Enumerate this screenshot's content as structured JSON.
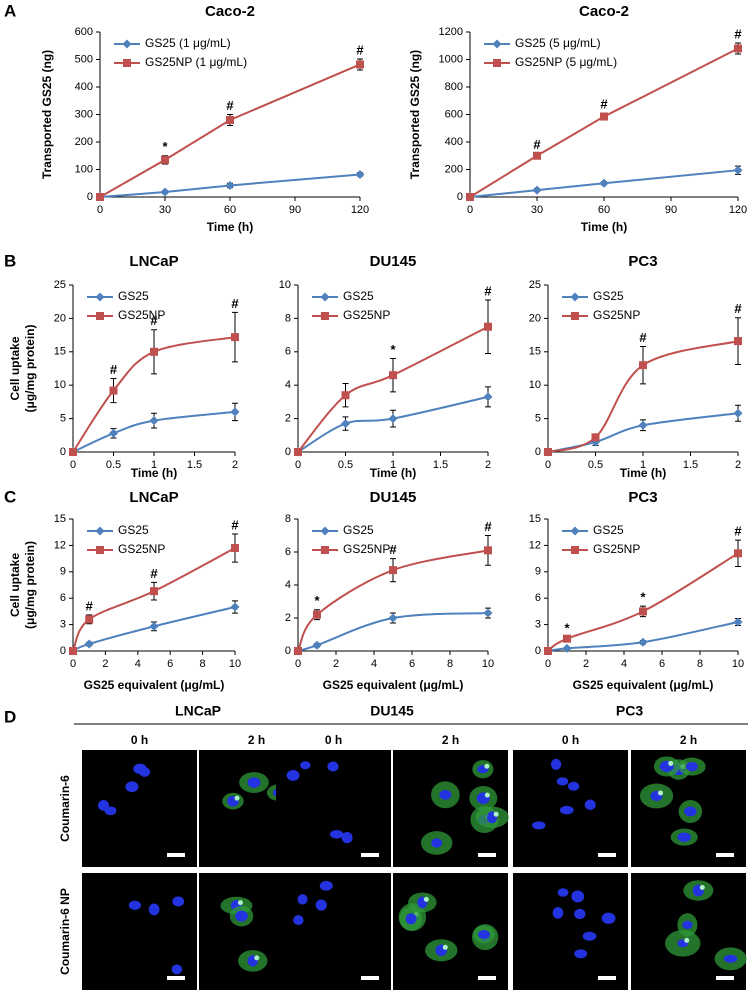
{
  "panel_labels": [
    "A",
    "B",
    "C",
    "D"
  ],
  "micrographs": {
    "cell_lines": [
      "LNCaP",
      "DU145",
      "PC3"
    ],
    "times": [
      "0 h",
      "2 h"
    ],
    "rows": [
      "Coumarin-6",
      "Coumarin-6 NP"
    ]
  },
  "chart_data": [
    {
      "type": "line",
      "title": "Caco-2",
      "xlabel": "Time (h)",
      "ylabel": "Transported GS25 (ng)",
      "smooth": false,
      "grid": false,
      "legend": "top-left",
      "x": [
        0,
        30,
        60,
        120
      ],
      "xlim": [
        0,
        120
      ],
      "xticks": [
        0,
        30,
        60,
        90,
        120
      ],
      "ylim": [
        0,
        600
      ],
      "yticks": [
        0,
        100,
        200,
        300,
        400,
        500,
        600
      ],
      "series": [
        {
          "name": "GS25 (1 μg/mL)",
          "color": "#4f81bd",
          "marker": "diamond",
          "values": [
            0,
            18,
            42,
            82
          ],
          "errors": [
            0,
            5,
            8,
            6
          ],
          "point_labels": [
            null,
            null,
            null,
            null
          ]
        },
        {
          "name": "GS25NP (1 μg/mL)",
          "color": "#c0504d",
          "marker": "square",
          "values": [
            0,
            135,
            280,
            482
          ],
          "errors": [
            0,
            15,
            20,
            20
          ],
          "point_labels": [
            null,
            "*",
            "#",
            "#"
          ]
        }
      ]
    },
    {
      "type": "line",
      "title": "Caco-2",
      "xlabel": "Time (h)",
      "ylabel": "Transported GS25 (ng)",
      "smooth": false,
      "grid": false,
      "legend": "top-left",
      "x": [
        0,
        30,
        60,
        120
      ],
      "xlim": [
        0,
        120
      ],
      "xticks": [
        0,
        30,
        60,
        90,
        120
      ],
      "ylim": [
        0,
        1200
      ],
      "yticks": [
        0,
        200,
        400,
        600,
        800,
        1000,
        1200
      ],
      "series": [
        {
          "name": "GS25 (5 μg/mL)",
          "color": "#4f81bd",
          "marker": "diamond",
          "values": [
            0,
            50,
            100,
            195
          ],
          "errors": [
            0,
            10,
            12,
            30
          ],
          "point_labels": [
            null,
            null,
            null,
            null
          ]
        },
        {
          "name": "GS25NP (5 μg/mL)",
          "color": "#c0504d",
          "marker": "square",
          "values": [
            0,
            300,
            585,
            1080
          ],
          "errors": [
            0,
            15,
            25,
            40
          ],
          "point_labels": [
            null,
            "#",
            "#",
            "#"
          ]
        }
      ]
    },
    {
      "type": "line",
      "title": "LNCaP",
      "xlabel": "Time (h)",
      "ylabel": [
        "Cell uptake",
        "(μg/mg protein)"
      ],
      "smooth": true,
      "grid": false,
      "legend": "top-left",
      "x": [
        0,
        0.5,
        1,
        2
      ],
      "xlim": [
        0,
        2
      ],
      "xticks": [
        0,
        0.5,
        1,
        1.5,
        2
      ],
      "ylim": [
        0,
        25
      ],
      "yticks": [
        0,
        5,
        10,
        15,
        20,
        25
      ],
      "series": [
        {
          "name": "GS25",
          "color": "#4f81bd",
          "marker": "diamond",
          "values": [
            0,
            2.8,
            4.7,
            6
          ],
          "errors": [
            0,
            0.7,
            1.1,
            1.3
          ],
          "point_labels": [
            null,
            null,
            null,
            null
          ]
        },
        {
          "name": "GS25NP",
          "color": "#c0504d",
          "marker": "square",
          "values": [
            0,
            9.2,
            15,
            17.2
          ],
          "errors": [
            0,
            1.8,
            3.3,
            3.7
          ],
          "point_labels": [
            null,
            "#",
            "#",
            "#"
          ]
        }
      ]
    },
    {
      "type": "line",
      "title": "DU145",
      "xlabel": "Time (h)",
      "smooth": true,
      "grid": false,
      "legend": "top-left",
      "x": [
        0,
        0.5,
        1,
        2
      ],
      "xlim": [
        0,
        2
      ],
      "xticks": [
        0,
        0.5,
        1,
        1.5,
        2
      ],
      "ylim": [
        0,
        10
      ],
      "yticks": [
        0,
        2,
        4,
        6,
        8,
        10
      ],
      "series": [
        {
          "name": "GS25",
          "color": "#4f81bd",
          "marker": "diamond",
          "values": [
            0,
            1.7,
            2,
            3.3
          ],
          "errors": [
            0,
            0.4,
            0.5,
            0.6
          ],
          "point_labels": [
            null,
            null,
            null,
            null
          ]
        },
        {
          "name": "GS25NP",
          "color": "#c0504d",
          "marker": "square",
          "values": [
            0,
            3.4,
            4.6,
            7.5
          ],
          "errors": [
            0,
            0.7,
            1,
            1.6
          ],
          "point_labels": [
            null,
            null,
            "*",
            "#"
          ]
        }
      ]
    },
    {
      "type": "line",
      "title": "PC3",
      "xlabel": "Time (h)",
      "smooth": true,
      "grid": false,
      "legend": "top-left",
      "x": [
        0,
        0.5,
        1,
        2
      ],
      "xlim": [
        0,
        2
      ],
      "xticks": [
        0,
        0.5,
        1,
        1.5,
        2
      ],
      "ylim": [
        0,
        25
      ],
      "yticks": [
        0,
        5,
        10,
        15,
        20,
        25
      ],
      "series": [
        {
          "name": "GS25",
          "color": "#4f81bd",
          "marker": "diamond",
          "values": [
            0,
            1.5,
            4,
            5.8
          ],
          "errors": [
            0,
            0.5,
            0.8,
            1.2
          ],
          "point_labels": [
            null,
            null,
            null,
            null
          ]
        },
        {
          "name": "GS25NP",
          "color": "#c0504d",
          "marker": "square",
          "values": [
            0,
            2.2,
            13,
            16.6
          ],
          "errors": [
            0,
            0.5,
            2.8,
            3.5
          ],
          "point_labels": [
            null,
            null,
            "#",
            "#"
          ]
        }
      ]
    },
    {
      "type": "line",
      "title": "LNCaP",
      "xlabel": "GS25 equivalent (μg/mL)",
      "ylabel": [
        "Cell uptake",
        "(μg/mg protein)"
      ],
      "smooth": true,
      "grid": false,
      "legend": "top-left",
      "x": [
        0,
        1,
        5,
        10
      ],
      "xlim": [
        0,
        10
      ],
      "xticks": [
        0,
        2,
        4,
        6,
        8,
        10
      ],
      "ylim": [
        0,
        15
      ],
      "yticks": [
        0,
        3,
        6,
        9,
        12,
        15
      ],
      "series": [
        {
          "name": "GS25",
          "color": "#4f81bd",
          "marker": "diamond",
          "values": [
            0,
            0.8,
            2.8,
            5
          ],
          "errors": [
            0,
            0.2,
            0.5,
            0.7
          ],
          "point_labels": [
            null,
            null,
            null,
            null
          ]
        },
        {
          "name": "GS25NP",
          "color": "#c0504d",
          "marker": "square",
          "values": [
            0,
            3.6,
            6.8,
            11.7
          ],
          "errors": [
            0,
            0.5,
            1,
            1.6
          ],
          "point_labels": [
            null,
            "#",
            "#",
            "#"
          ]
        }
      ]
    },
    {
      "type": "line",
      "title": "DU145",
      "xlabel": "GS25 equivalent (μg/mL)",
      "smooth": true,
      "grid": false,
      "legend": "top-left",
      "x": [
        0,
        1,
        5,
        10
      ],
      "xlim": [
        0,
        10
      ],
      "xticks": [
        0,
        2,
        4,
        6,
        8,
        10
      ],
      "ylim": [
        0,
        8
      ],
      "yticks": [
        0,
        2,
        4,
        6,
        8
      ],
      "series": [
        {
          "name": "GS25",
          "color": "#4f81bd",
          "marker": "diamond",
          "values": [
            0,
            0.35,
            2,
            2.3
          ],
          "errors": [
            0,
            0.1,
            0.3,
            0.3
          ],
          "point_labels": [
            null,
            null,
            null,
            null
          ]
        },
        {
          "name": "GS25NP",
          "color": "#c0504d",
          "marker": "square",
          "values": [
            0,
            2.2,
            4.9,
            6.1
          ],
          "errors": [
            0,
            0.3,
            0.7,
            0.9
          ],
          "point_labels": [
            null,
            "*",
            "#",
            "#"
          ]
        }
      ]
    },
    {
      "type": "line",
      "title": "PC3",
      "xlabel": "GS25 equivalent (μg/mL)",
      "smooth": true,
      "grid": false,
      "legend": "top-left",
      "x": [
        0,
        1,
        5,
        10
      ],
      "xlim": [
        0,
        10
      ],
      "xticks": [
        0,
        2,
        4,
        6,
        8,
        10
      ],
      "ylim": [
        0,
        15
      ],
      "yticks": [
        0,
        3,
        6,
        9,
        12,
        15
      ],
      "series": [
        {
          "name": "GS25",
          "color": "#4f81bd",
          "marker": "diamond",
          "values": [
            0,
            0.3,
            1,
            3.3
          ],
          "errors": [
            0,
            0.1,
            0.2,
            0.4
          ],
          "point_labels": [
            null,
            null,
            null,
            null
          ]
        },
        {
          "name": "GS25NP",
          "color": "#c0504d",
          "marker": "square",
          "values": [
            0,
            1.4,
            4.5,
            11.1
          ],
          "errors": [
            0,
            0.2,
            0.6,
            1.5
          ],
          "point_labels": [
            null,
            "*",
            "*",
            "#"
          ]
        }
      ]
    }
  ]
}
